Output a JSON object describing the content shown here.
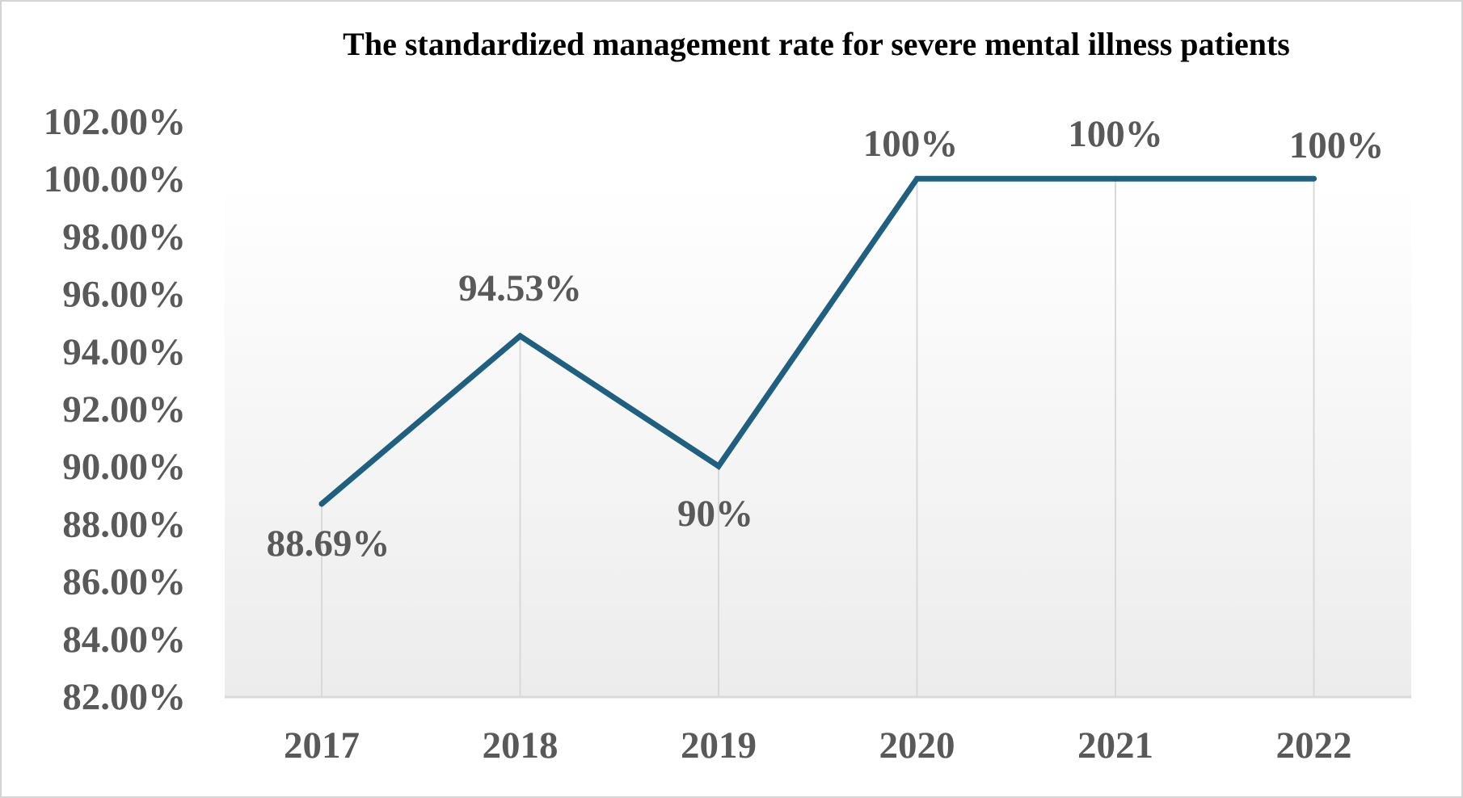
{
  "chart_data": {
    "type": "line",
    "title": "The standardized management rate for severe mental illness patients",
    "categories": [
      "2017",
      "2018",
      "2019",
      "2020",
      "2021",
      "2022"
    ],
    "series": [
      {
        "values": [
          88.69,
          94.53,
          90,
          100,
          100,
          100
        ],
        "data_labels": [
          "88.69%",
          "94.53%",
          "90%",
          "100%",
          "100%",
          "100%"
        ],
        "color": "#1f5f7f"
      }
    ],
    "ylim": [
      82,
      102
    ],
    "yticks": [
      102,
      100,
      98,
      96,
      94,
      92,
      90,
      88,
      86,
      84,
      82
    ],
    "ytick_labels": [
      "102.00%",
      "100.00%",
      "98.00%",
      "96.00%",
      "94.00%",
      "92.00%",
      "90.00%",
      "88.00%",
      "86.00%",
      "84.00%",
      "82.00%"
    ],
    "xlabel": "",
    "ylabel": "",
    "grid": "vertical",
    "legend": "none"
  }
}
